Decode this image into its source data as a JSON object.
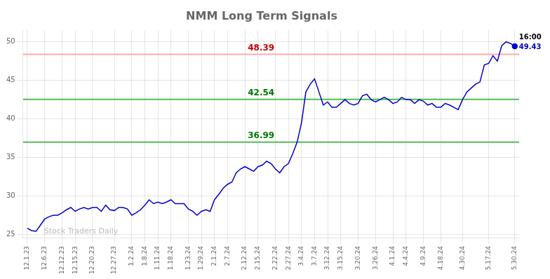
{
  "chart_data": {
    "type": "line",
    "title": "NMM Long Term Signals",
    "x": [
      0,
      1,
      2,
      3,
      4,
      5,
      6,
      7,
      8,
      9,
      10,
      11,
      12,
      13,
      14,
      15,
      16,
      17,
      18,
      19,
      20,
      21,
      22,
      23,
      24,
      25,
      26,
      27,
      28,
      29,
      30,
      31,
      32,
      33,
      34,
      35,
      36,
      37,
      38,
      39,
      40,
      41,
      42,
      43,
      44,
      45,
      46,
      47,
      48,
      49,
      50,
      51,
      52,
      53,
      54,
      55,
      56,
      57,
      58,
      59,
      60,
      61,
      62,
      63,
      64,
      65,
      66,
      67,
      68,
      69,
      70,
      71,
      72,
      73,
      74,
      75,
      76,
      77,
      78,
      79,
      80,
      81,
      82,
      83,
      84,
      85,
      86,
      87,
      88,
      89,
      90,
      91,
      92,
      93,
      94,
      95,
      96,
      97,
      98,
      99,
      100,
      101,
      102,
      103,
      104,
      105,
      106,
      107,
      108,
      109,
      110,
      111,
      112
    ],
    "values": [
      25.8,
      25.5,
      25.4,
      26.2,
      27.0,
      27.3,
      27.5,
      27.5,
      27.8,
      28.2,
      28.5,
      28.0,
      28.3,
      28.5,
      28.3,
      28.5,
      28.5,
      28.0,
      28.8,
      28.2,
      28.1,
      28.5,
      28.5,
      28.3,
      27.5,
      27.8,
      28.2,
      28.8,
      29.5,
      29.0,
      29.2,
      29.0,
      29.2,
      29.5,
      29.0,
      29.0,
      29.0,
      28.3,
      28.0,
      27.5,
      28.0,
      28.2,
      28.0,
      29.5,
      30.2,
      31.0,
      31.5,
      31.8,
      33.0,
      33.5,
      33.8,
      33.5,
      33.2,
      33.8,
      34.0,
      34.5,
      34.2,
      33.5,
      33.0,
      33.8,
      34.2,
      35.5,
      37.0,
      39.5,
      43.5,
      44.5,
      45.2,
      43.5,
      41.8,
      42.2,
      41.5,
      41.5,
      42.0,
      42.5,
      42.0,
      41.8,
      42.0,
      43.0,
      43.2,
      42.5,
      42.2,
      42.5,
      42.8,
      42.5,
      42.0,
      42.2,
      42.8,
      42.5,
      42.5,
      42.0,
      42.5,
      42.3,
      41.8,
      42.0,
      41.5,
      41.5,
      42.0,
      41.8,
      41.5,
      41.2,
      42.5,
      43.5,
      44.0,
      44.5,
      44.8,
      47.0,
      47.2,
      48.2,
      47.5,
      49.5,
      50.0,
      49.8,
      49.43
    ],
    "color": "#0000cc",
    "xlim": [
      -1,
      113
    ],
    "xticks": [
      {
        "value": 0,
        "label": "12.1.23"
      },
      {
        "value": 4,
        "label": "12.6.23"
      },
      {
        "value": 8,
        "label": "12.12.23"
      },
      {
        "value": 11,
        "label": "12.15.23"
      },
      {
        "value": 15,
        "label": "12.20.23"
      },
      {
        "value": 20,
        "label": "12.27.23"
      },
      {
        "value": 24,
        "label": "1.2.24"
      },
      {
        "value": 27,
        "label": "1.8.24"
      },
      {
        "value": 30,
        "label": "1.11.24"
      },
      {
        "value": 33,
        "label": "1.18.24"
      },
      {
        "value": 37,
        "label": "1.23.24"
      },
      {
        "value": 40,
        "label": "1.29.24"
      },
      {
        "value": 43,
        "label": "2.1.24"
      },
      {
        "value": 46,
        "label": "2.7.24"
      },
      {
        "value": 50,
        "label": "2.12.24"
      },
      {
        "value": 53,
        "label": "2.15.24"
      },
      {
        "value": 57,
        "label": "2.22.24"
      },
      {
        "value": 60,
        "label": "2.27.24"
      },
      {
        "value": 63,
        "label": "3.4.24"
      },
      {
        "value": 66,
        "label": "3.7.24"
      },
      {
        "value": 69,
        "label": "3.12.24"
      },
      {
        "value": 72,
        "label": "3.15.24"
      },
      {
        "value": 76,
        "label": "3.20.24"
      },
      {
        "value": 80,
        "label": "3.26.24"
      },
      {
        "value": 84,
        "label": "4.1.24"
      },
      {
        "value": 87,
        "label": "4.4.24"
      },
      {
        "value": 91,
        "label": "4.9.24"
      },
      {
        "value": 95,
        "label": "4.18.24"
      },
      {
        "value": 100,
        "label": "4.30.24"
      },
      {
        "value": 106,
        "label": "5.17.24"
      },
      {
        "value": 112,
        "label": "5.30.24"
      }
    ],
    "ylim": [
      24.5,
      51.5
    ],
    "yticks": [
      25,
      30,
      35,
      40,
      45,
      50
    ],
    "grid": true,
    "hlines": [
      {
        "value": 48.39,
        "label": "48.39",
        "color": "#ffaaaa",
        "label_color": "#cc0000"
      },
      {
        "value": 42.54,
        "label": "42.54",
        "color": "#55bb55",
        "label_color": "#007700"
      },
      {
        "value": 36.99,
        "label": "36.99",
        "color": "#55bb55",
        "label_color": "#007700"
      }
    ],
    "annotations": [
      {
        "text": "16:00",
        "color": "#000000"
      },
      {
        "text": "49.43",
        "color": "#0000cc"
      }
    ],
    "watermark": "Stock Traders Daily"
  }
}
